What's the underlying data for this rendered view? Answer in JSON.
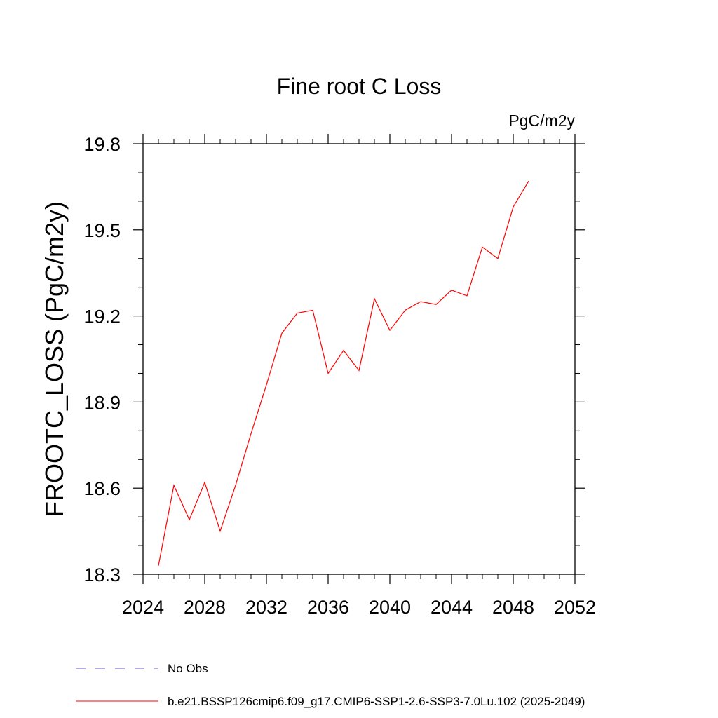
{
  "chart_data": {
    "type": "line",
    "title": "Fine root C Loss",
    "units_label": "PgC/m2y",
    "ylabel": "FROOTC_LOSS  (PgC/m2y)",
    "xlabel": "",
    "xlim": [
      2024,
      2052
    ],
    "ylim": [
      18.3,
      19.8
    ],
    "x_ticks": [
      2024,
      2028,
      2032,
      2036,
      2040,
      2044,
      2048,
      2052
    ],
    "x_tick_labels": [
      "2024",
      "2028",
      "2032",
      "2036",
      "2040",
      "2044",
      "2048",
      "2052"
    ],
    "y_ticks": [
      18.3,
      18.6,
      18.9,
      19.2,
      19.5,
      19.8
    ],
    "y_tick_labels": [
      "18.3",
      "18.6",
      "18.9",
      "19.2",
      "19.5",
      "19.8"
    ],
    "grid": false,
    "legend_placement": "bottom",
    "legend": [
      {
        "label": "No Obs",
        "color": "#6a5acd",
        "dash": "dashed"
      },
      {
        "label": "b.e21.BSSP126cmip6.f09_g17.CMIP6-SSP1-2.6-SSP3-7.0Lu.102 (2025-2049)",
        "color": "#ff0000",
        "dash": "solid"
      }
    ],
    "series": [
      {
        "color": "#ff0000",
        "x": [
          2025,
          2026,
          2027,
          2028,
          2029,
          2030,
          2031,
          2032,
          2033,
          2034,
          2035,
          2036,
          2037,
          2038,
          2039,
          2040,
          2041,
          2042,
          2043,
          2044,
          2045,
          2046,
          2047,
          2048,
          2049
        ],
        "values": [
          18.33,
          18.61,
          18.49,
          18.62,
          18.45,
          18.61,
          18.79,
          18.96,
          19.14,
          19.21,
          19.22,
          19.0,
          19.08,
          19.01,
          19.26,
          19.15,
          19.22,
          19.25,
          19.24,
          19.29,
          19.27,
          19.44,
          19.4,
          19.58,
          19.67
        ]
      }
    ]
  }
}
